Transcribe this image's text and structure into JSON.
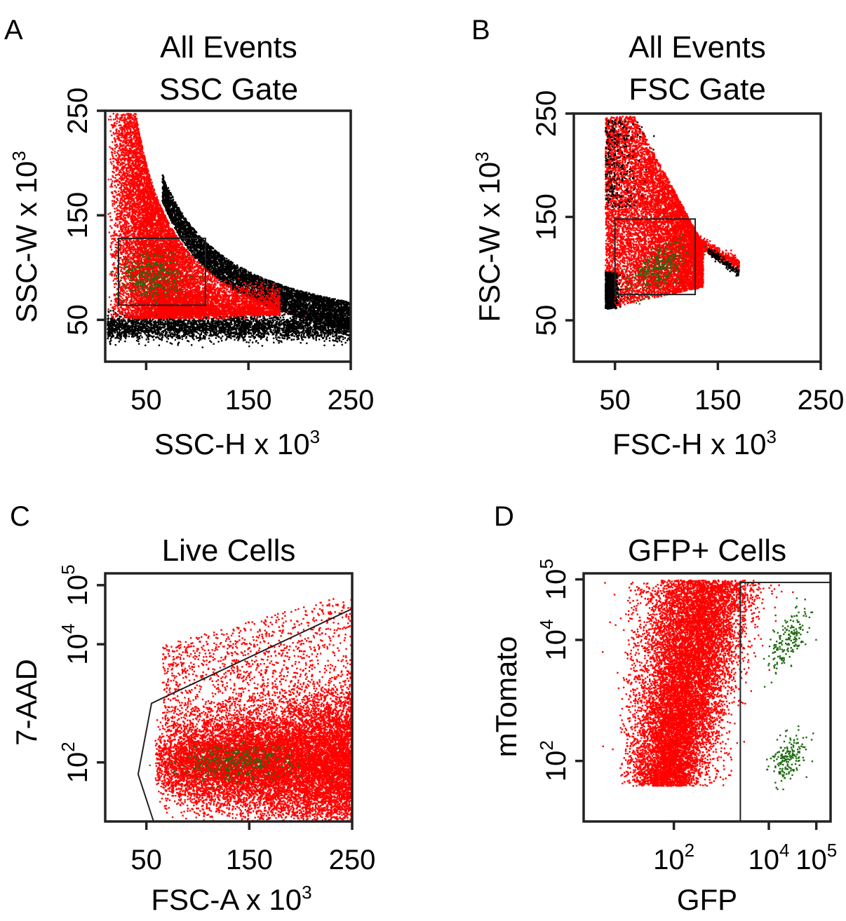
{
  "colors": {
    "population_red": "#ff0000",
    "population_black": "#000000",
    "population_green": "#1f6b12",
    "axis": "#222222"
  },
  "chart_data": [
    {
      "id": "A",
      "letter": "A",
      "type": "scatter",
      "title_lines": [
        "All Events",
        "SSC Gate"
      ],
      "xlabel": "SSC-H x 10",
      "xlabel_exp": "3",
      "ylabel": "SSC-W x 10",
      "ylabel_exp": "3",
      "xscale": "linear",
      "yscale": "linear",
      "xlim": [
        10,
        250
      ],
      "ylim": [
        10,
        250
      ],
      "xticks": [
        {
          "value": 50,
          "label": "50"
        },
        {
          "value": 150,
          "label": "150"
        },
        {
          "value": 250,
          "label": "250"
        }
      ],
      "yticks": [
        {
          "value": 50,
          "label": "50"
        },
        {
          "value": 150,
          "label": "150"
        },
        {
          "value": 250,
          "label": "250"
        }
      ],
      "gate": {
        "shape": "rectangle",
        "x": [
          23,
          108
        ],
        "y": [
          64,
          128
        ]
      },
      "series": [
        {
          "population": "black",
          "description_points": "diagonal hyperbolic band and low-SSC-W baseline"
        },
        {
          "population": "red",
          "description_points": "main cell cloud"
        },
        {
          "population": "green",
          "description_points": "cells inside gate"
        }
      ]
    },
    {
      "id": "B",
      "letter": "B",
      "type": "scatter",
      "title_lines": [
        "All Events",
        "FSC Gate"
      ],
      "xlabel": "FSC-H x 10",
      "xlabel_exp": "3",
      "ylabel": "FSC-W x 10",
      "ylabel_exp": "3",
      "xscale": "linear",
      "yscale": "linear",
      "xlim": [
        10,
        250
      ],
      "ylim": [
        10,
        250
      ],
      "xticks": [
        {
          "value": 50,
          "label": "50"
        },
        {
          "value": 150,
          "label": "150"
        },
        {
          "value": 250,
          "label": "250"
        }
      ],
      "yticks": [
        {
          "value": 50,
          "label": "50"
        },
        {
          "value": 150,
          "label": "150"
        },
        {
          "value": 250,
          "label": "250"
        }
      ],
      "gate": {
        "shape": "rectangle",
        "x": [
          50,
          128
        ],
        "y": [
          75,
          148
        ]
      },
      "series": [
        {
          "population": "black",
          "description_points": "debris at low FSC-H"
        },
        {
          "population": "red",
          "description_points": "singlet fan"
        },
        {
          "population": "green",
          "description_points": "cells inside gate"
        }
      ]
    },
    {
      "id": "C",
      "letter": "C",
      "type": "scatter",
      "title_lines": [
        "Live Cells"
      ],
      "xlabel": "FSC-A x 10",
      "xlabel_exp": "3",
      "ylabel": "7-AAD",
      "ylabel_exp": "",
      "xscale": "linear",
      "yscale": "log",
      "xlim": [
        10,
        250
      ],
      "ylim": [
        1,
        5.2
      ],
      "xticks": [
        {
          "value": 50,
          "label": "50"
        },
        {
          "value": 150,
          "label": "150"
        },
        {
          "value": 250,
          "label": "250"
        }
      ],
      "yticks": [
        {
          "value": 2,
          "label": "10",
          "exp": "2"
        },
        {
          "value": 4,
          "label": "10",
          "exp": "4"
        },
        {
          "value": 5,
          "label": "10",
          "exp": "5"
        }
      ],
      "gate": {
        "shape": "polygon",
        "points": [
          [
            57,
            1
          ],
          [
            42,
            1.8
          ],
          [
            55,
            3
          ],
          [
            255,
            4.6
          ]
        ]
      },
      "series": [
        {
          "population": "red",
          "description_points": "live cell band"
        },
        {
          "population": "green",
          "description_points": "GFP+ cells"
        }
      ]
    },
    {
      "id": "D",
      "letter": "D",
      "type": "scatter",
      "title_lines": [
        "GFP+ Cells"
      ],
      "xlabel": "GFP",
      "xlabel_exp": "",
      "ylabel": "mTomato",
      "ylabel_exp": "",
      "xscale": "log",
      "yscale": "log",
      "xlim": [
        0.1,
        5.3
      ],
      "ylim": [
        1,
        5.1
      ],
      "xticks": [
        {
          "value": 2,
          "label": "10",
          "exp": "2"
        },
        {
          "value": 4,
          "label": "10",
          "exp": "4"
        },
        {
          "value": 5,
          "label": "10",
          "exp": "5"
        }
      ],
      "yticks": [
        {
          "value": 2,
          "label": "10",
          "exp": "2"
        },
        {
          "value": 4,
          "label": "10",
          "exp": "4"
        },
        {
          "value": 5,
          "label": "10",
          "exp": "5"
        }
      ],
      "gate": {
        "shape": "rectangle",
        "x": [
          3.4,
          5.3
        ],
        "y": [
          1,
          4.95
        ]
      },
      "series": [
        {
          "population": "red",
          "description_points": "GFP- population"
        },
        {
          "population": "green",
          "description_points": "GFP+ population, two clusters"
        }
      ]
    }
  ]
}
